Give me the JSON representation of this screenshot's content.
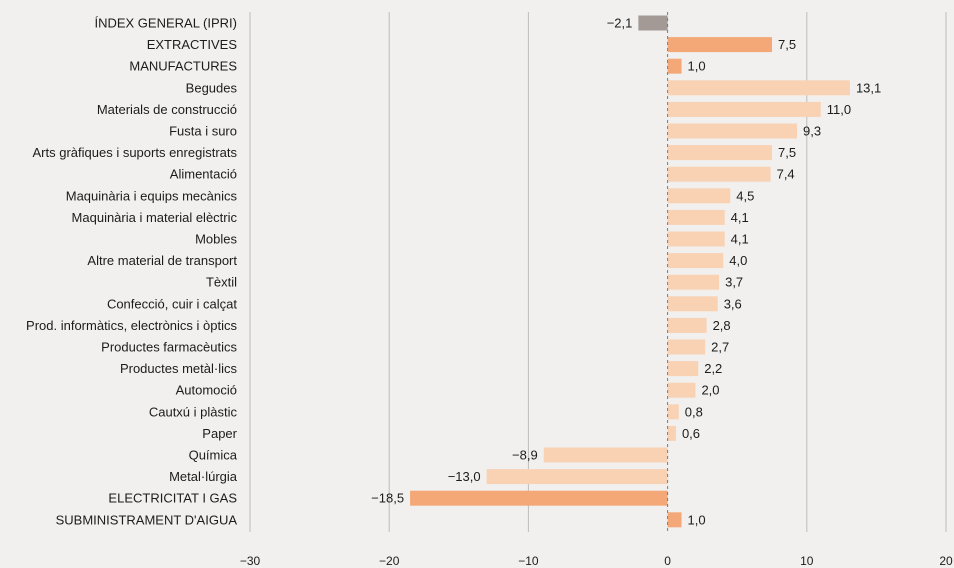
{
  "chart_data": {
    "type": "bar",
    "orientation": "horizontal",
    "xlim": [
      -30,
      20
    ],
    "xticks": [
      -30,
      -20,
      -10,
      0,
      10,
      20
    ],
    "xtick_labels": [
      "−30",
      "−20",
      "−10",
      "0",
      "10",
      "20"
    ],
    "grid": "vertical",
    "colors": {
      "index": "#a39a96",
      "group": "#f4a877",
      "subsector": "#f9d2b4",
      "axis": "#bdbdbd",
      "zero_line": "#7a7a7a",
      "text": "#1c1c1c"
    },
    "bars": [
      {
        "label": "ÍNDEX GENERAL (IPRI)",
        "value": -2.1,
        "value_label": "−2,1",
        "kind": "index"
      },
      {
        "label": "EXTRACTIVES",
        "value": 7.5,
        "value_label": "7,5",
        "kind": "group"
      },
      {
        "label": "MANUFACTURES",
        "value": 1.0,
        "value_label": "1,0",
        "kind": "group"
      },
      {
        "label": "Begudes",
        "value": 13.1,
        "value_label": "13,1",
        "kind": "subsector"
      },
      {
        "label": "Materials de construcció",
        "value": 11.0,
        "value_label": "11,0",
        "kind": "subsector"
      },
      {
        "label": "Fusta i suro",
        "value": 9.3,
        "value_label": "9,3",
        "kind": "subsector"
      },
      {
        "label": "Arts gràfiques i suports enregistrats",
        "value": 7.5,
        "value_label": "7,5",
        "kind": "subsector"
      },
      {
        "label": "Alimentació",
        "value": 7.4,
        "value_label": "7,4",
        "kind": "subsector"
      },
      {
        "label": "Maquinària i equips mecànics",
        "value": 4.5,
        "value_label": "4,5",
        "kind": "subsector"
      },
      {
        "label": "Maquinària i material elèctric",
        "value": 4.1,
        "value_label": "4,1",
        "kind": "subsector"
      },
      {
        "label": "Mobles",
        "value": 4.1,
        "value_label": "4,1",
        "kind": "subsector"
      },
      {
        "label": "Altre material de transport",
        "value": 4.0,
        "value_label": "4,0",
        "kind": "subsector"
      },
      {
        "label": "Tèxtil",
        "value": 3.7,
        "value_label": "3,7",
        "kind": "subsector"
      },
      {
        "label": "Confecció, cuir i calçat",
        "value": 3.6,
        "value_label": "3,6",
        "kind": "subsector"
      },
      {
        "label": "Prod. informàtics, electrònics i òptics",
        "value": 2.8,
        "value_label": "2,8",
        "kind": "subsector"
      },
      {
        "label": "Productes farmacèutics",
        "value": 2.7,
        "value_label": "2,7",
        "kind": "subsector"
      },
      {
        "label": "Productes metàl·lics",
        "value": 2.2,
        "value_label": "2,2",
        "kind": "subsector"
      },
      {
        "label": "Automoció",
        "value": 2.0,
        "value_label": "2,0",
        "kind": "subsector"
      },
      {
        "label": "Cautxú i plàstic",
        "value": 0.8,
        "value_label": "0,8",
        "kind": "subsector"
      },
      {
        "label": "Paper",
        "value": 0.6,
        "value_label": "0,6",
        "kind": "subsector"
      },
      {
        "label": "Química",
        "value": -8.9,
        "value_label": "−8,9",
        "kind": "subsector"
      },
      {
        "label": "Metal·lúrgia",
        "value": -13.0,
        "value_label": "−13,0",
        "kind": "subsector"
      },
      {
        "label": "ELECTRICITAT I GAS",
        "value": -18.5,
        "value_label": "−18,5",
        "kind": "group"
      },
      {
        "label": "SUBMINISTRAMENT D'AIGUA",
        "value": 1.0,
        "value_label": "1,0",
        "kind": "group"
      }
    ]
  }
}
